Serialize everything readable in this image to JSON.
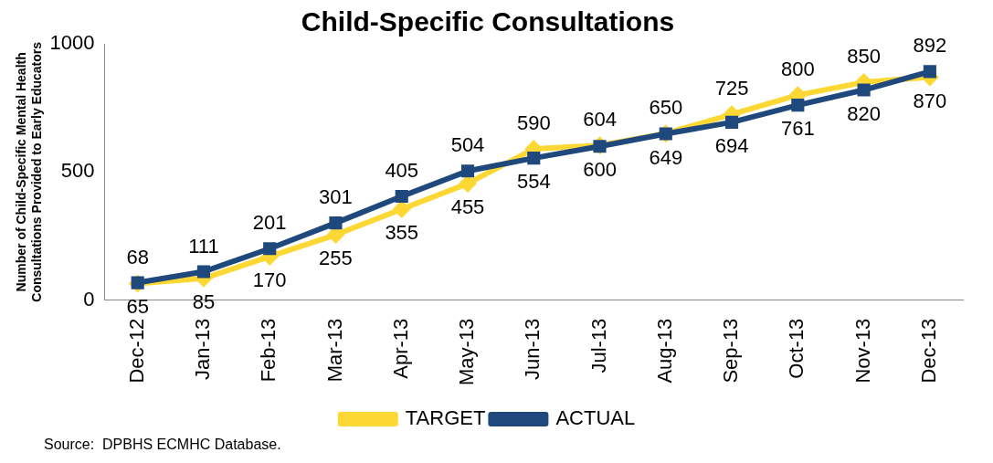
{
  "chart_data": {
    "type": "line",
    "title": "Child-Specific Consultations",
    "ylabel": "Number of Child-Specific Mental Health Consultations Provided to Early Educators",
    "categories": [
      "Dec-12",
      "Jan-13",
      "Feb-13",
      "Mar-13",
      "Apr-13",
      "May-13",
      "Jun-13",
      "Jul-13",
      "Aug-13",
      "Sep-13",
      "Oct-13",
      "Nov-13",
      "Dec-13"
    ],
    "series": [
      {
        "name": "TARGET",
        "color": "#fdd835",
        "marker": "diamond",
        "values": [
          65,
          85,
          170,
          255,
          355,
          455,
          590,
          604,
          650,
          725,
          800,
          850,
          870
        ]
      },
      {
        "name": "ACTUAL",
        "color": "#1f497d",
        "marker": "square",
        "values": [
          68,
          111,
          201,
          301,
          405,
          504,
          554,
          600,
          649,
          694,
          761,
          820,
          892
        ]
      }
    ],
    "ylim": [
      0,
      1000
    ],
    "yticks": [
      0,
      500,
      1000
    ],
    "grid": false,
    "legend": "bottom",
    "data_labels": true,
    "annotations": [
      "Source:  DPBHS ECMHC Database."
    ]
  }
}
